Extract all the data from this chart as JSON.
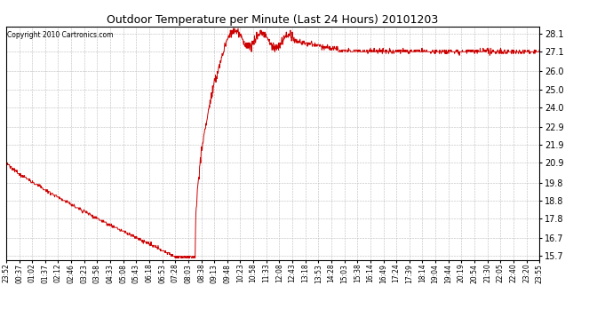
{
  "title": "Outdoor Temperature per Minute (Last 24 Hours) 20101203",
  "copyright_text": "Copyright 2010 Cartronics.com",
  "line_color": "#cc0000",
  "background_color": "#ffffff",
  "grid_color": "#bbbbbb",
  "yticks": [
    15.7,
    16.7,
    17.8,
    18.8,
    19.8,
    20.9,
    21.9,
    22.9,
    24.0,
    25.0,
    26.0,
    27.1,
    28.1
  ],
  "ylim": [
    15.5,
    28.5
  ],
  "xtick_labels": [
    "23:52",
    "00:37",
    "01:02",
    "01:37",
    "02:12",
    "02:46",
    "03:23",
    "03:58",
    "04:33",
    "05:08",
    "05:43",
    "06:18",
    "06:53",
    "07:28",
    "08:03",
    "08:38",
    "09:13",
    "09:48",
    "10:23",
    "10:58",
    "11:33",
    "12:08",
    "12:43",
    "13:18",
    "13:53",
    "14:28",
    "15:03",
    "15:38",
    "16:14",
    "16:49",
    "17:24",
    "17:39",
    "18:14",
    "19:04",
    "19:44",
    "20:19",
    "20:54",
    "21:30",
    "22:05",
    "22:40",
    "23:20",
    "23:55"
  ],
  "figsize": [
    6.9,
    3.75
  ],
  "dpi": 100
}
